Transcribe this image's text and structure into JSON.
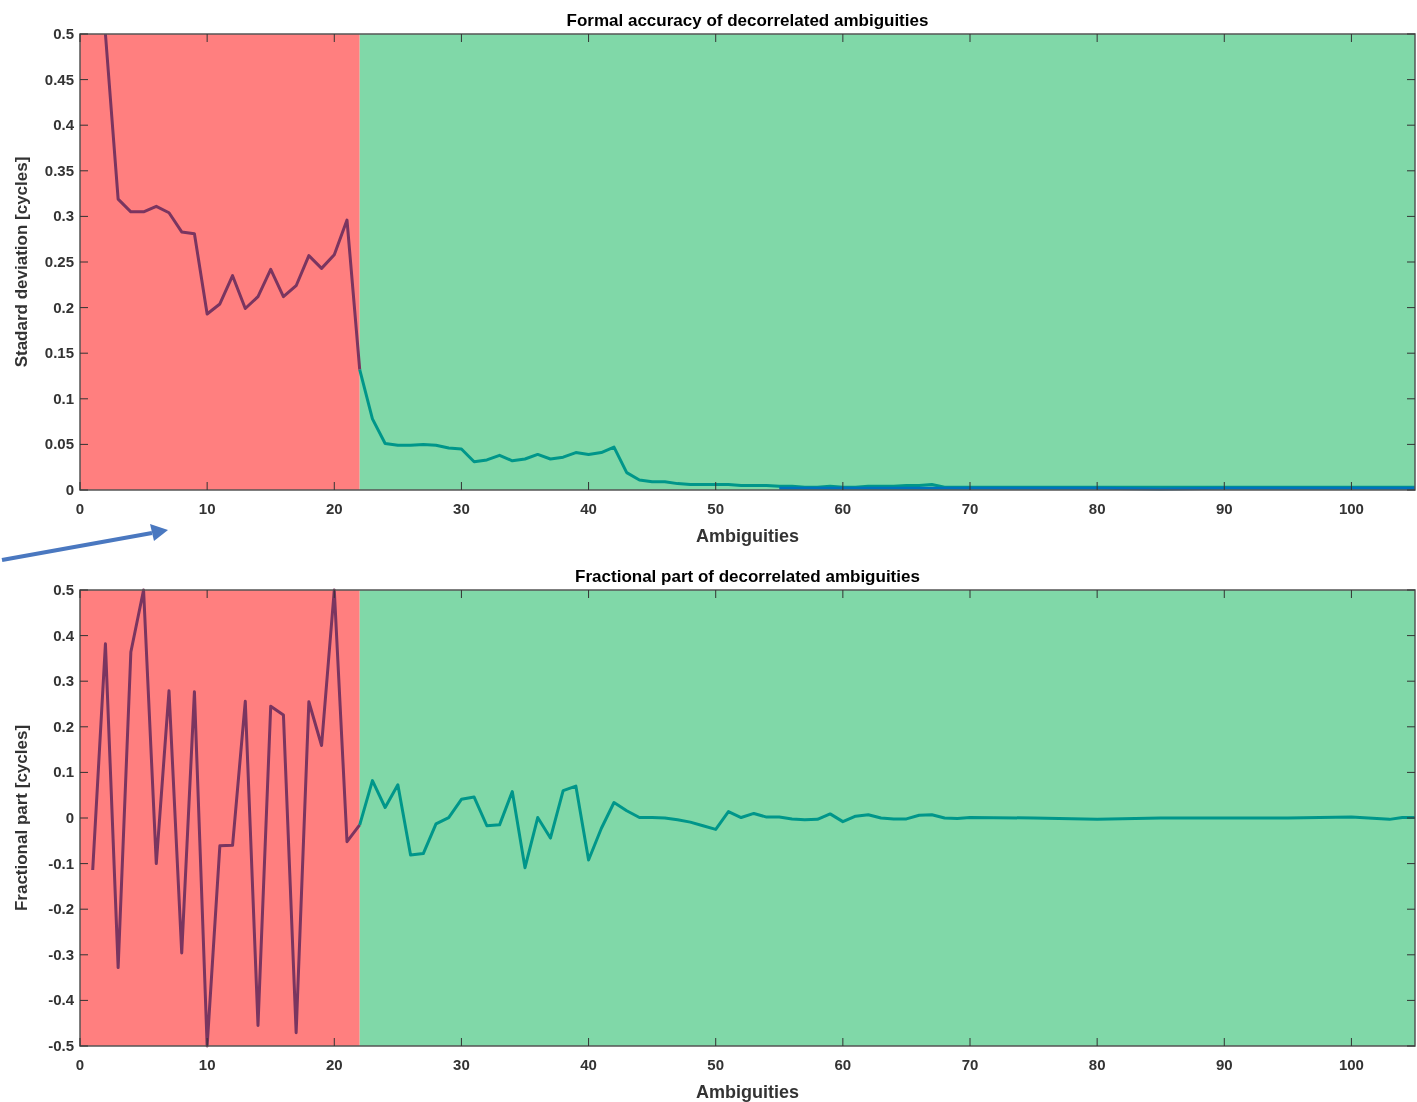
{
  "chart_data": [
    {
      "type": "line",
      "title": "Formal accuracy of decorrelated ambiguities",
      "xlabel": "Ambiguities",
      "ylabel": "Stadard deviation [cycles]",
      "xlim": [
        0,
        105
      ],
      "xticks": [
        0,
        10,
        20,
        30,
        40,
        50,
        60,
        70,
        80,
        90,
        100
      ],
      "ylim": [
        0,
        0.5
      ],
      "yticks": [
        0,
        0.05,
        0.1,
        0.15,
        0.2,
        0.25,
        0.3,
        0.35,
        0.4,
        0.45,
        0.5
      ],
      "grid": false,
      "marker": "none",
      "line_style": "solid",
      "bands": [
        {
          "axis": "x",
          "from": 0,
          "to": 22,
          "color": "#ff7f7f"
        },
        {
          "axis": "x",
          "from": 22,
          "to": 105,
          "color": "#80d8a8"
        }
      ],
      "series": [
        {
          "color": "#7a3560",
          "x": [
            2,
            3,
            4,
            5,
            6,
            7,
            8,
            9,
            10,
            11,
            12,
            13,
            14,
            15,
            16,
            17,
            18,
            19,
            20,
            21,
            22
          ],
          "values": [
            0.5,
            0.319,
            0.305,
            0.305,
            0.311,
            0.304,
            0.283,
            0.281,
            0.193,
            0.204,
            0.235,
            0.199,
            0.212,
            0.242,
            0.212,
            0.224,
            0.257,
            0.243,
            0.258,
            0.296,
            0.132
          ]
        },
        {
          "color": "#00968a",
          "x": [
            22,
            23,
            24,
            25,
            26,
            27,
            28,
            29,
            30,
            31,
            32,
            33,
            34,
            35,
            36,
            37,
            38,
            39,
            40,
            41,
            42,
            43,
            44,
            45,
            46,
            47,
            48,
            49,
            50,
            51,
            52,
            53,
            54,
            55,
            56,
            57,
            58,
            59,
            60,
            61,
            62,
            63,
            64,
            65,
            66,
            67,
            68,
            70,
            75,
            80,
            85,
            90,
            95,
            100,
            105
          ],
          "values": [
            0.132,
            0.078,
            0.051,
            0.049,
            0.049,
            0.05,
            0.049,
            0.046,
            0.045,
            0.031,
            0.033,
            0.038,
            0.032,
            0.034,
            0.039,
            0.034,
            0.036,
            0.041,
            0.039,
            0.041,
            0.047,
            0.019,
            0.011,
            0.009,
            0.009,
            0.007,
            0.006,
            0.006,
            0.006,
            0.006,
            0.005,
            0.005,
            0.005,
            0.004,
            0.004,
            0.003,
            0.003,
            0.004,
            0.003,
            0.003,
            0.004,
            0.004,
            0.004,
            0.005,
            0.005,
            0.006,
            0.003,
            0.003,
            0.003,
            0.003,
            0.003,
            0.003,
            0.003,
            0.003,
            0.003
          ]
        },
        {
          "color": "#0072bd",
          "x": [
            55,
            60,
            65,
            70,
            75,
            80,
            85,
            90,
            95,
            100,
            105
          ],
          "values": [
            0.002,
            0.002,
            0.002,
            0.002,
            0.002,
            0.002,
            0.001,
            0.002,
            0.002,
            0.002,
            0.002
          ]
        }
      ]
    },
    {
      "type": "line",
      "title": "Fractional part of decorrelated ambiguities",
      "xlabel": "Ambiguities",
      "ylabel": "Fractional part [cycles]",
      "xlim": [
        0,
        105
      ],
      "xticks": [
        0,
        10,
        20,
        30,
        40,
        50,
        60,
        70,
        80,
        90,
        100
      ],
      "ylim": [
        -0.5,
        0.5
      ],
      "yticks": [
        -0.5,
        -0.4,
        -0.3,
        -0.2,
        -0.1,
        0,
        0.1,
        0.2,
        0.3,
        0.4,
        0.5
      ],
      "grid": false,
      "marker": "none",
      "line_style": "solid",
      "bands": [
        {
          "axis": "x",
          "from": 0,
          "to": 22,
          "color": "#ff7f7f"
        },
        {
          "axis": "x",
          "from": 22,
          "to": 105,
          "color": "#80d8a8"
        }
      ],
      "series": [
        {
          "color": "#7a3560",
          "x": [
            1,
            2,
            3,
            4,
            5,
            6,
            7,
            8,
            9,
            10,
            11,
            12,
            13,
            14,
            15,
            16,
            17,
            18,
            19,
            20,
            21,
            22
          ],
          "values": [
            -0.114,
            0.382,
            -0.328,
            0.364,
            0.5,
            -0.1,
            0.279,
            -0.296,
            0.277,
            -0.5,
            -0.061,
            -0.06,
            0.256,
            -0.455,
            0.245,
            0.226,
            -0.471,
            0.255,
            0.159,
            0.5,
            -0.052,
            -0.015
          ]
        },
        {
          "color": "#00968a",
          "x": [
            22,
            23,
            24,
            25,
            26,
            27,
            28,
            29,
            30,
            31,
            32,
            33,
            34,
            35,
            36,
            37,
            38,
            39,
            40,
            41,
            42,
            43,
            44,
            45,
            46,
            47,
            48,
            49,
            50,
            51,
            52,
            53,
            54,
            55,
            56,
            57,
            58,
            59,
            60,
            61,
            62,
            63,
            64,
            65,
            66,
            67,
            68,
            69,
            70,
            75,
            80,
            85,
            90,
            95,
            100,
            103,
            104,
            105
          ],
          "values": [
            -0.015,
            0.082,
            0.023,
            0.073,
            -0.081,
            -0.078,
            -0.013,
            0.001,
            0.041,
            0.046,
            -0.017,
            -0.015,
            0.058,
            -0.109,
            0.001,
            -0.044,
            0.06,
            0.07,
            -0.092,
            -0.023,
            0.034,
            0.016,
            0.001,
            0.001,
            0,
            -0.004,
            -0.009,
            -0.017,
            -0.025,
            0.014,
            0.001,
            0.01,
            0.002,
            0.002,
            -0.002,
            -0.004,
            -0.003,
            0.009,
            -0.008,
            0.004,
            0.007,
            0,
            -0.002,
            -0.002,
            0.006,
            0.007,
            0,
            -0.001,
            0.001,
            0,
            -0.003,
            0,
            0,
            0,
            0.002,
            -0.003,
            0.001,
            0.001
          ]
        }
      ]
    }
  ]
}
